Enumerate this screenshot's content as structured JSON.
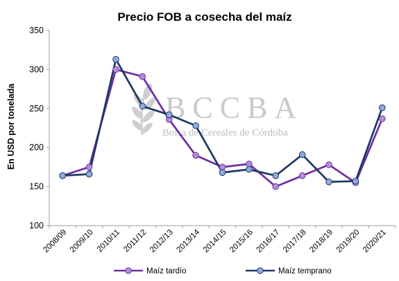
{
  "chart_data": {
    "type": "line",
    "title": "Precio FOB a cosecha del maíz",
    "ylabel": "En USD por tonelada",
    "xlabel": "",
    "ylim": [
      100,
      350
    ],
    "yticks": [
      100,
      150,
      200,
      250,
      300,
      350
    ],
    "grid": false,
    "legend_position": "bottom",
    "categories": [
      "2008/09",
      "2009/10",
      "2010/11",
      "2011/12",
      "2012/13",
      "2013/14",
      "2014/15",
      "2015/16",
      "2016/17",
      "2017/18",
      "2018/19",
      "2019/20",
      "2020/21"
    ],
    "series": [
      {
        "name": "Maíz tardío",
        "color": "#7030a0",
        "marker_color": "#b38ed8",
        "values": [
          164,
          175,
          300,
          291,
          236,
          190,
          175,
          179,
          150,
          164,
          178,
          155,
          237
        ]
      },
      {
        "name": "Maíz temprano",
        "color": "#1f3864",
        "marker_color": "#8faadc",
        "values": [
          164,
          166,
          313,
          253,
          242,
          228,
          168,
          172,
          164,
          191,
          156,
          157,
          251
        ]
      }
    ]
  },
  "watermark": {
    "letters": "BCCBA",
    "subtitle": "Bolsa de Cereales de Córdoba",
    "icon": "wheat-icon"
  }
}
